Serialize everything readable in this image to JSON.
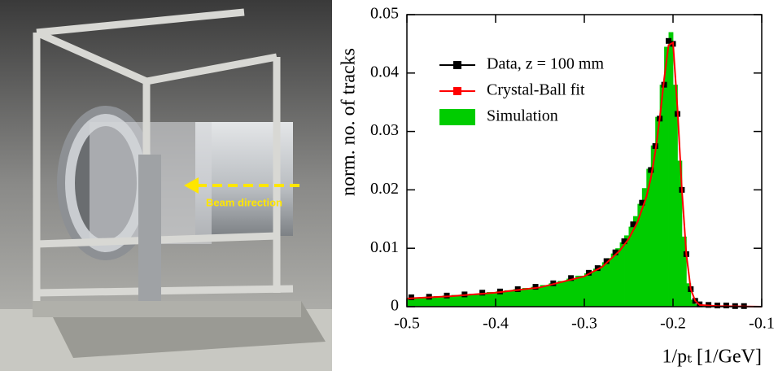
{
  "photo": {
    "annotation": "Beam direction"
  },
  "chart_data": {
    "type": "line",
    "xlabel": "1/pₜ [1/GeV]",
    "ylabel": "norm. no. of tracks",
    "xlim": [
      -0.5,
      -0.1
    ],
    "xticks": [
      -0.5,
      -0.4,
      -0.3,
      -0.2,
      -0.1
    ],
    "ylim": [
      0,
      0.05
    ],
    "yticks": [
      0,
      0.01,
      0.02,
      0.03,
      0.04,
      0.05
    ],
    "legend": "upper left",
    "series": [
      {
        "name": "Data, z = 100 mm",
        "color": "#000000",
        "marker": "square",
        "x": [
          -0.495,
          -0.475,
          -0.455,
          -0.435,
          -0.415,
          -0.395,
          -0.375,
          -0.355,
          -0.335,
          -0.315,
          -0.295,
          -0.285,
          -0.275,
          -0.265,
          -0.255,
          -0.245,
          -0.235,
          -0.225,
          -0.22,
          -0.215,
          -0.21,
          -0.205,
          -0.2,
          -0.195,
          -0.19,
          -0.185,
          -0.18,
          -0.175,
          -0.17,
          -0.16,
          -0.15,
          -0.14,
          -0.13,
          -0.12
        ],
        "values": [
          0.0016,
          0.0017,
          0.0019,
          0.0021,
          0.0024,
          0.0026,
          0.003,
          0.0034,
          0.004,
          0.0049,
          0.0058,
          0.0066,
          0.0078,
          0.0093,
          0.0112,
          0.0141,
          0.0178,
          0.0234,
          0.0275,
          0.0322,
          0.038,
          0.0455,
          0.045,
          0.033,
          0.02,
          0.009,
          0.003,
          0.001,
          0.0004,
          0.0003,
          0.0002,
          0.0002,
          0.0001,
          0.0001
        ]
      },
      {
        "name": "Crystal-Ball fit",
        "color": "#ff0000",
        "x": [
          -0.5,
          -0.45,
          -0.4,
          -0.35,
          -0.3,
          -0.28,
          -0.26,
          -0.25,
          -0.24,
          -0.23,
          -0.225,
          -0.22,
          -0.215,
          -0.21,
          -0.205,
          -0.2,
          -0.195,
          -0.19,
          -0.185,
          -0.18,
          -0.175,
          -0.17,
          -0.15,
          -0.1
        ],
        "values": [
          0.0014,
          0.0018,
          0.0024,
          0.0033,
          0.0052,
          0.0068,
          0.0096,
          0.0116,
          0.0145,
          0.0188,
          0.022,
          0.0265,
          0.0322,
          0.039,
          0.0448,
          0.0452,
          0.034,
          0.02,
          0.009,
          0.003,
          0.001,
          0.0003,
          0.0001,
          0
        ]
      },
      {
        "name": "Simulation",
        "color": "#00cc00",
        "bins": [
          -0.5,
          -0.49,
          -0.48,
          -0.47,
          -0.46,
          -0.45,
          -0.44,
          -0.43,
          -0.42,
          -0.41,
          -0.4,
          -0.39,
          -0.38,
          -0.37,
          -0.36,
          -0.35,
          -0.34,
          -0.33,
          -0.32,
          -0.31,
          -0.3,
          -0.295,
          -0.29,
          -0.285,
          -0.28,
          -0.275,
          -0.27,
          -0.265,
          -0.26,
          -0.255,
          -0.25,
          -0.245,
          -0.24,
          -0.235,
          -0.23,
          -0.225,
          -0.22,
          -0.215,
          -0.21,
          -0.205,
          -0.2,
          -0.195,
          -0.19,
          -0.185,
          -0.18,
          -0.175,
          -0.17,
          -0.165,
          -0.16,
          -0.155
        ],
        "values": [
          0.0015,
          0.0016,
          0.0017,
          0.0018,
          0.0019,
          0.002,
          0.0021,
          0.0022,
          0.0023,
          0.0025,
          0.0026,
          0.0028,
          0.003,
          0.0032,
          0.0034,
          0.0037,
          0.004,
          0.0044,
          0.0048,
          0.0053,
          0.0057,
          0.006,
          0.0065,
          0.007,
          0.0076,
          0.0083,
          0.0091,
          0.01,
          0.011,
          0.0122,
          0.0137,
          0.0155,
          0.0176,
          0.0203,
          0.0236,
          0.0276,
          0.0325,
          0.038,
          0.0445,
          0.047,
          0.038,
          0.025,
          0.012,
          0.004,
          0.0012,
          0.0004,
          0.0002,
          0.0001,
          0.0001
        ]
      }
    ]
  }
}
